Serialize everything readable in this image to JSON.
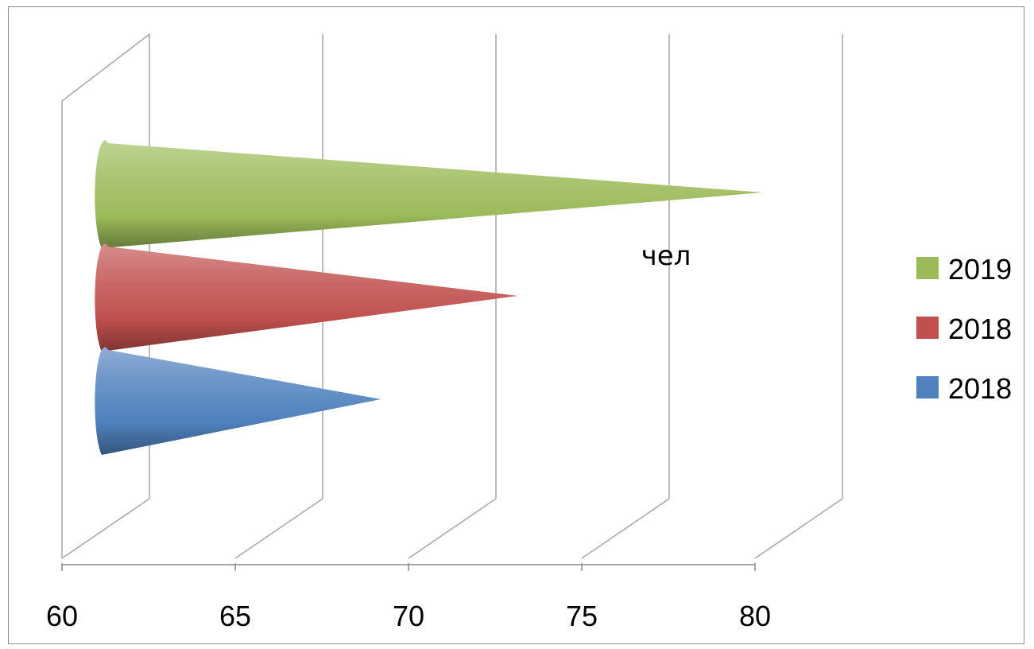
{
  "chart_data": {
    "type": "bar",
    "variant": "3d-cone-horizontal",
    "series": [
      {
        "name": "2018",
        "value": 69.1,
        "color": "#4f81bd"
      },
      {
        "name": "2018",
        "value": 73.0,
        "color": "#c0504d"
      },
      {
        "name": "2019",
        "value": 80.0,
        "color": "#9bbb59"
      }
    ],
    "annotation": "чел",
    "xlim": [
      60,
      80
    ],
    "x_ticks": [
      "60",
      "65",
      "70",
      "75",
      "80"
    ],
    "grid": true,
    "legend_position": "right",
    "legend_order": [
      2,
      1,
      0
    ]
  }
}
